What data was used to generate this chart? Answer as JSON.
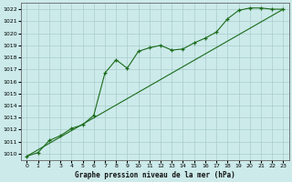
{
  "title": "Graphe pression niveau de la mer (hPa)",
  "background_color": "#cceaea",
  "grid_color": "#aacccc",
  "line_color": "#1a6b1a",
  "xlim": [
    -0.5,
    23.5
  ],
  "ylim": [
    1009.5,
    1022.5
  ],
  "yticks": [
    1010,
    1011,
    1012,
    1013,
    1014,
    1015,
    1016,
    1017,
    1018,
    1019,
    1020,
    1021,
    1022
  ],
  "xticks": [
    0,
    1,
    2,
    3,
    4,
    5,
    6,
    7,
    8,
    9,
    10,
    11,
    12,
    13,
    14,
    15,
    16,
    17,
    18,
    19,
    20,
    21,
    22,
    23
  ],
  "series1_x": [
    0,
    1,
    2,
    3,
    4,
    5,
    6,
    7,
    8,
    9,
    10,
    11,
    12,
    13,
    14,
    15,
    16,
    17,
    18,
    19,
    20,
    21,
    22,
    23
  ],
  "series1_y": [
    1009.8,
    1010.1,
    1011.1,
    1011.5,
    1012.1,
    1012.4,
    1013.2,
    1016.7,
    1017.8,
    1017.1,
    1018.5,
    1018.8,
    1019.0,
    1018.6,
    1018.7,
    1019.2,
    1019.6,
    1020.1,
    1021.2,
    1021.9,
    1022.1,
    1022.1,
    1022.0,
    1022.0
  ],
  "series2_x": [
    0,
    23
  ],
  "series2_y": [
    1009.8,
    1022.0
  ]
}
